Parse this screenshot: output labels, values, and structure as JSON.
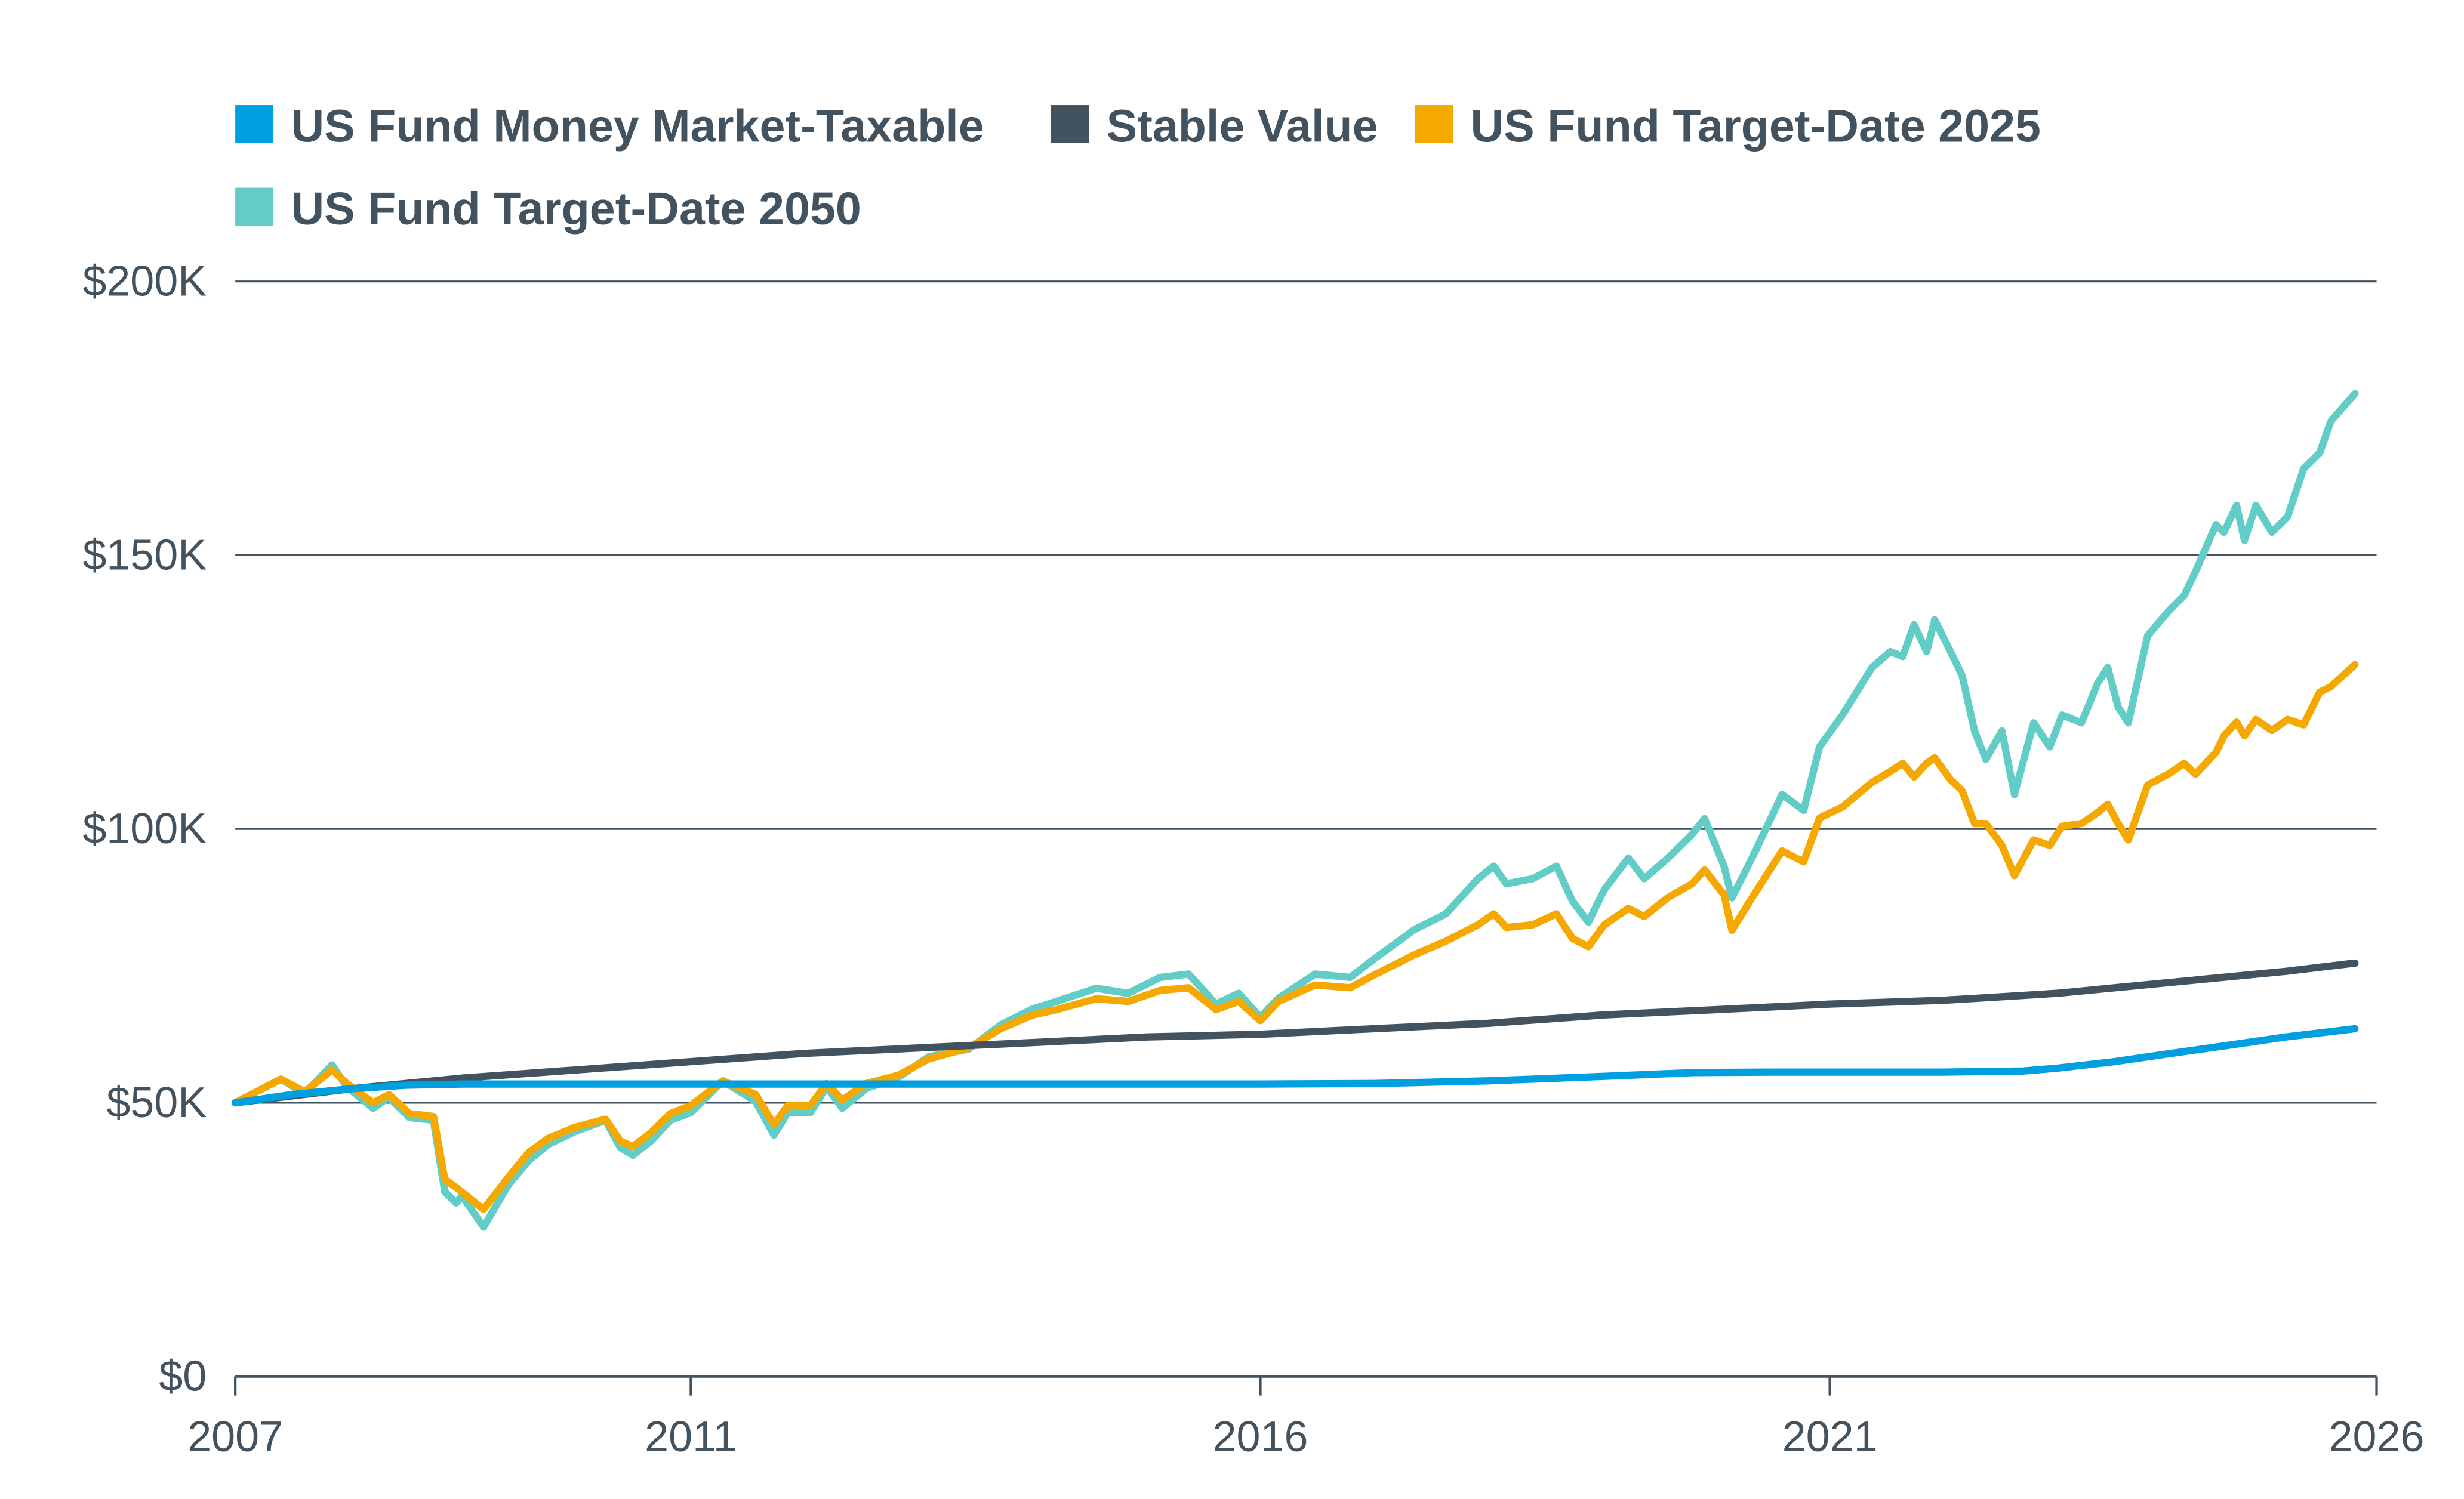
{
  "chart_data": {
    "type": "line",
    "title": "",
    "xlabel": "",
    "ylabel": "",
    "xlim": [
      2007,
      2025.8
    ],
    "ylim": [
      0,
      200000
    ],
    "grid": true,
    "legend_position": "top-left",
    "y_ticks": [
      {
        "value": 0,
        "label": "$0"
      },
      {
        "value": 50000,
        "label": "$50K"
      },
      {
        "value": 100000,
        "label": "$100K"
      },
      {
        "value": 150000,
        "label": "$150K"
      },
      {
        "value": 200000,
        "label": "$200K"
      }
    ],
    "x_ticks": [
      {
        "value": 2007,
        "label": "2007"
      },
      {
        "value": 2011,
        "label": "2011"
      },
      {
        "value": 2016,
        "label": "2016"
      },
      {
        "value": 2021,
        "label": "2021"
      },
      {
        "value": 2025.8,
        "label": "2026"
      }
    ],
    "series": [
      {
        "name": "US Fund Money Market-Taxable",
        "color": "#009fdf",
        "x": [
          2007,
          2007.5,
          2008,
          2008.5,
          2009,
          2010,
          2011,
          2012,
          2013,
          2014,
          2015,
          2016,
          2017,
          2018,
          2019,
          2019.8,
          2020.5,
          2021,
          2022,
          2022.7,
          2023,
          2023.5,
          2024,
          2024.5,
          2025,
          2025.61
        ],
        "y": [
          50000,
          51500,
          52500,
          53200,
          53400,
          53400,
          53400,
          53400,
          53400,
          53400,
          53400,
          53400,
          53500,
          54000,
          54800,
          55500,
          55600,
          55600,
          55600,
          55800,
          56300,
          57500,
          59000,
          60500,
          62000,
          63500
        ]
      },
      {
        "name": "Stable Value",
        "color": "#42525f",
        "x": [
          2007,
          2008,
          2009,
          2010,
          2011,
          2012,
          2013,
          2014,
          2015,
          2016,
          2017,
          2018,
          2019,
          2020,
          2021,
          2022,
          2023,
          2024,
          2025,
          2025.61
        ],
        "y": [
          50000,
          52500,
          54500,
          56000,
          57500,
          59000,
          60000,
          61000,
          62000,
          62500,
          63500,
          64500,
          66000,
          67000,
          68000,
          68700,
          70000,
          72000,
          74000,
          75500
        ]
      },
      {
        "name": "US Fund Target-Date 2025",
        "color": "#f5a800",
        "x": [
          2007.0,
          2007.4,
          2007.61,
          2007.85,
          2007.98,
          2008.21,
          2008.35,
          2008.53,
          2008.74,
          2008.84,
          2008.94,
          2009.18,
          2009.4,
          2009.58,
          2009.75,
          2009.98,
          2010.25,
          2010.38,
          2010.49,
          2010.65,
          2010.82,
          2011.0,
          2011.28,
          2011.57,
          2011.73,
          2011.85,
          2012.05,
          2012.19,
          2012.33,
          2012.54,
          2012.82,
          2013.09,
          2013.44,
          2013.72,
          2014.0,
          2014.21,
          2014.56,
          2014.84,
          2015.12,
          2015.37,
          2015.61,
          2015.81,
          2016.0,
          2016.16,
          2016.48,
          2016.79,
          2016.97,
          2017.35,
          2017.63,
          2017.91,
          2018.05,
          2018.16,
          2018.39,
          2018.6,
          2018.74,
          2018.88,
          2019.02,
          2019.23,
          2019.37,
          2019.58,
          2019.79,
          2019.9,
          2020.07,
          2020.14,
          2020.35,
          2020.58,
          2020.77,
          2020.91,
          2021.11,
          2021.37,
          2021.53,
          2021.64,
          2021.74,
          2021.85,
          2021.92,
          2022.06,
          2022.16,
          2022.27,
          2022.37,
          2022.51,
          2022.62,
          2022.79,
          2022.93,
          2023.04,
          2023.21,
          2023.35,
          2023.44,
          2023.53,
          2023.62,
          2023.79,
          2023.97,
          2024.11,
          2024.21,
          2024.39,
          2024.46,
          2024.57,
          2024.64,
          2024.74,
          2024.88,
          2025.02,
          2025.16,
          2025.3,
          2025.4,
          2025.61
        ],
        "y": [
          50000,
          54300,
          52000,
          56000,
          53500,
          50000,
          51500,
          48000,
          47500,
          36000,
          34500,
          30500,
          36500,
          41000,
          43500,
          45500,
          47000,
          43000,
          42000,
          44500,
          48000,
          49500,
          54000,
          51500,
          46000,
          49500,
          49500,
          53500,
          50500,
          53500,
          55000,
          58000,
          60000,
          63500,
          66000,
          67000,
          69000,
          68500,
          70500,
          71000,
          67000,
          68500,
          65000,
          68500,
          71500,
          71000,
          73000,
          77000,
          79500,
          82500,
          84500,
          82000,
          82500,
          84500,
          80000,
          78500,
          82500,
          85500,
          84000,
          87500,
          90000,
          92500,
          88000,
          81500,
          88500,
          96000,
          94000,
          102000,
          104000,
          108500,
          110500,
          112000,
          109500,
          112000,
          113000,
          109000,
          107000,
          101000,
          101000,
          97000,
          91500,
          98000,
          97000,
          100500,
          101000,
          103000,
          104500,
          101000,
          98000,
          108000,
          110000,
          112000,
          110000,
          114000,
          117000,
          119500,
          117000,
          120000,
          118000,
          120000,
          119000,
          125000,
          126000,
          130000
        ]
      },
      {
        "name": "US Fund Target-Date 2050",
        "color": "#62cdc7",
        "x": [
          2007.0,
          2007.4,
          2007.61,
          2007.85,
          2007.98,
          2008.21,
          2008.35,
          2008.53,
          2008.74,
          2008.84,
          2008.94,
          2008.99,
          2009.18,
          2009.4,
          2009.58,
          2009.75,
          2009.98,
          2010.25,
          2010.38,
          2010.49,
          2010.65,
          2010.82,
          2011.0,
          2011.28,
          2011.57,
          2011.73,
          2011.85,
          2012.05,
          2012.19,
          2012.33,
          2012.54,
          2012.82,
          2013.09,
          2013.44,
          2013.72,
          2014.0,
          2014.21,
          2014.56,
          2014.84,
          2015.12,
          2015.37,
          2015.61,
          2015.81,
          2016.0,
          2016.16,
          2016.48,
          2016.79,
          2016.97,
          2017.35,
          2017.63,
          2017.91,
          2018.05,
          2018.16,
          2018.39,
          2018.6,
          2018.74,
          2018.88,
          2019.02,
          2019.23,
          2019.37,
          2019.58,
          2019.79,
          2019.9,
          2020.07,
          2020.14,
          2020.35,
          2020.58,
          2020.77,
          2020.91,
          2021.11,
          2021.37,
          2021.53,
          2021.64,
          2021.74,
          2021.85,
          2021.92,
          2022.06,
          2022.16,
          2022.27,
          2022.37,
          2022.51,
          2022.62,
          2022.79,
          2022.93,
          2023.04,
          2023.21,
          2023.35,
          2023.44,
          2023.53,
          2023.62,
          2023.79,
          2023.97,
          2024.11,
          2024.21,
          2024.39,
          2024.46,
          2024.57,
          2024.64,
          2024.74,
          2024.88,
          2025.02,
          2025.16,
          2025.3,
          2025.4,
          2025.61
        ],
        "y": [
          50000,
          54300,
          51700,
          56900,
          52900,
          49000,
          51000,
          47300,
          46800,
          33700,
          31700,
          33000,
          27300,
          35100,
          39500,
          42400,
          44700,
          46800,
          41800,
          40400,
          43000,
          46800,
          48200,
          54000,
          50200,
          44100,
          48200,
          48200,
          52900,
          49000,
          52600,
          54600,
          58400,
          59800,
          64200,
          67100,
          68500,
          70900,
          70000,
          72900,
          73500,
          68000,
          70000,
          65600,
          69100,
          73500,
          72900,
          75800,
          81600,
          84500,
          90900,
          93200,
          90000,
          90900,
          93200,
          86800,
          83000,
          88900,
          94700,
          90900,
          94700,
          99000,
          101900,
          93200,
          87400,
          96100,
          106300,
          103400,
          115000,
          120800,
          129500,
          132400,
          131500,
          137300,
          132400,
          138200,
          132400,
          128100,
          117900,
          112700,
          117900,
          106300,
          119400,
          115000,
          120800,
          119400,
          126600,
          129500,
          122300,
          119400,
          135300,
          139700,
          142600,
          147000,
          155600,
          154200,
          159100,
          152700,
          159100,
          154200,
          157100,
          165800,
          168700,
          174500,
          179500
        ]
      }
    ]
  }
}
